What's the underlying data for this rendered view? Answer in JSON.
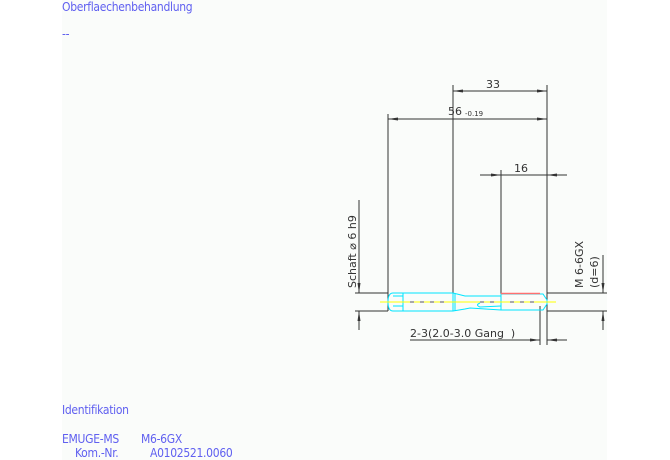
{
  "surface_treatment": {
    "label": "Oberflaechenbehandlung",
    "value": "--"
  },
  "identification": {
    "label": "Identifikation",
    "product": "EMUGE-MS",
    "size": "M6-6GX",
    "kom_label": "Kom.-Nr.",
    "kom_value": "A0102521.0060"
  },
  "drawing": {
    "dim_thread_to_end": "33",
    "dim_total_length": "56",
    "dim_total_tolerance": "-0.19",
    "dim_thread_length": "16",
    "shank_label": "Schaft ⌀ 6 h9",
    "thread_label": "M 6-6GX",
    "thread_d_label": "(d=6)",
    "chamfer_label": "2-3(2.0-3.0 Gang  )",
    "colors": {
      "text": "#6060f0",
      "dim_lines": "#333333",
      "tool_outline": "#00e5ff",
      "center_line": "#ffff00",
      "thread_mark": "#ff7070"
    }
  }
}
